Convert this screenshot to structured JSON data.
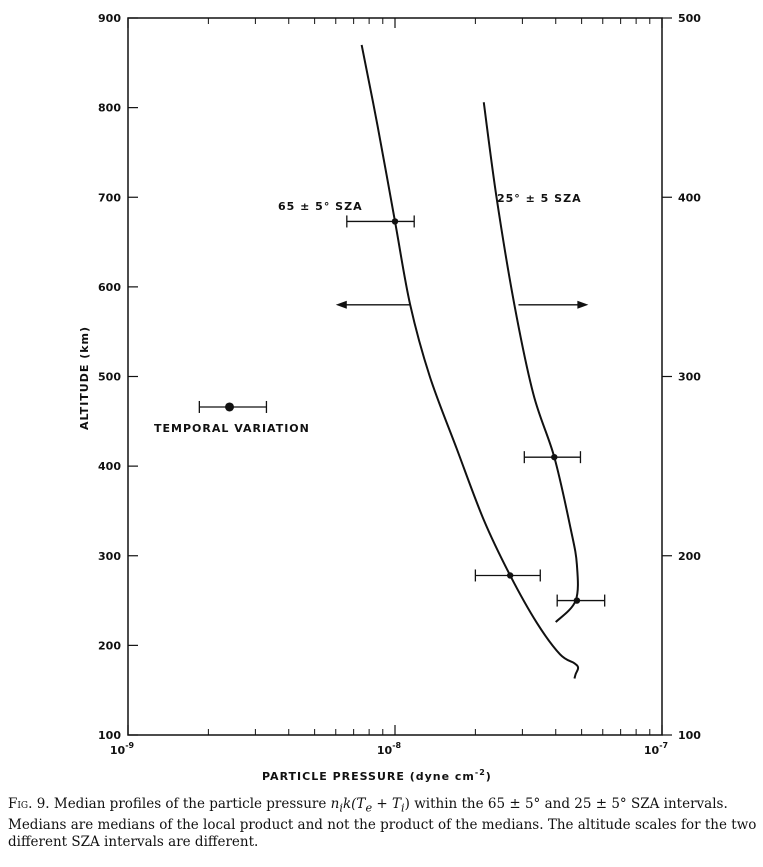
{
  "chart_data": {
    "type": "line",
    "xlabel": "PARTICLE PRESSURE (dyne cm",
    "xlabel_exp": "-2",
    "xlabel_tail": ")",
    "ylabel": "ALTITUDE (km)",
    "x_scale": "log",
    "xlim": [
      1e-09,
      1e-07
    ],
    "ylim_left": [
      100,
      900
    ],
    "ylim_right": [
      100,
      500
    ],
    "grid": false,
    "x_ticks": [
      {
        "base": "10",
        "exp": "-9",
        "value": 1e-09
      },
      {
        "base": "10",
        "exp": "-8",
        "value": 1e-08
      },
      {
        "base": "10",
        "exp": "-7",
        "value": 1e-07
      }
    ],
    "y_ticks_left": [
      "100",
      "200",
      "300",
      "400",
      "500",
      "600",
      "700",
      "800",
      "900"
    ],
    "y_ticks_right": [
      "100",
      "200",
      "300",
      "400",
      "500"
    ],
    "series": [
      {
        "name": "65 ± 5° SZA",
        "axis": "left",
        "x": [
          7.5e-09,
          8.6e-09,
          1e-08,
          1.14e-08,
          1.35e-08,
          1.7e-08,
          2.15e-08,
          2.7e-08,
          3.4e-08,
          4.15e-08,
          4.7e-08,
          4.85e-08,
          4.75e-08,
          4.7e-08
        ],
        "y": [
          870,
          780,
          673,
          580,
          500,
          420,
          340,
          278,
          225,
          190,
          180,
          175,
          168,
          163
        ],
        "errorbars": [
          {
            "x": 1e-08,
            "y": 673,
            "xmin": 6.6e-09,
            "xmax": 1.18e-08
          },
          {
            "x": 2.7e-08,
            "y": 278,
            "xmin": 2e-08,
            "xmax": 3.5e-08
          }
        ]
      },
      {
        "name": "25° ± 5 SZA",
        "axis": "right",
        "x": [
          2.15e-08,
          2.4e-08,
          2.8e-08,
          3.3e-08,
          3.95e-08,
          4.55e-08,
          4.8e-08,
          4.75e-08,
          4e-08
        ],
        "y": [
          453,
          400,
          340,
          290,
          255,
          215,
          195,
          175,
          163
        ],
        "errorbars": [
          {
            "x": 3.95e-08,
            "y": 255,
            "xmin": 3.05e-08,
            "xmax": 4.95e-08
          },
          {
            "x": 4.8e-08,
            "y": 175,
            "xmin": 4.05e-08,
            "xmax": 6.1e-08
          }
        ]
      }
    ],
    "annotations": {
      "label_65": "65 ± 5° SZA",
      "label_25": "25° ± 5 SZA",
      "temporal_label": "TEMPORAL VARIATION",
      "temporal_point": {
        "x": 2.4e-09,
        "y": 466,
        "xmin": 1.85e-09,
        "xmax": 3.3e-09
      },
      "arrow_left": {
        "y": 580,
        "from": 1.14e-08,
        "to": 6e-09
      },
      "arrow_right": {
        "y": 580,
        "from": 2.9e-08,
        "to": 5.3e-08
      }
    }
  },
  "caption": {
    "fig": "Fig. 9.",
    "text_before": " Median profiles of the particle pressure ",
    "formula": "n",
    "formula_sub": "i",
    "formula_rest": "k(T",
    "formula_sub2": "e",
    "formula_mid": " + T",
    "formula_sub3": "i",
    "formula_end": ")",
    "text_after": " within the 65 ± 5° and 25 ± 5° SZA intervals. Medians are medians of the local product and not the product of the medians. The altitude scales for the two different SZA intervals are different."
  }
}
